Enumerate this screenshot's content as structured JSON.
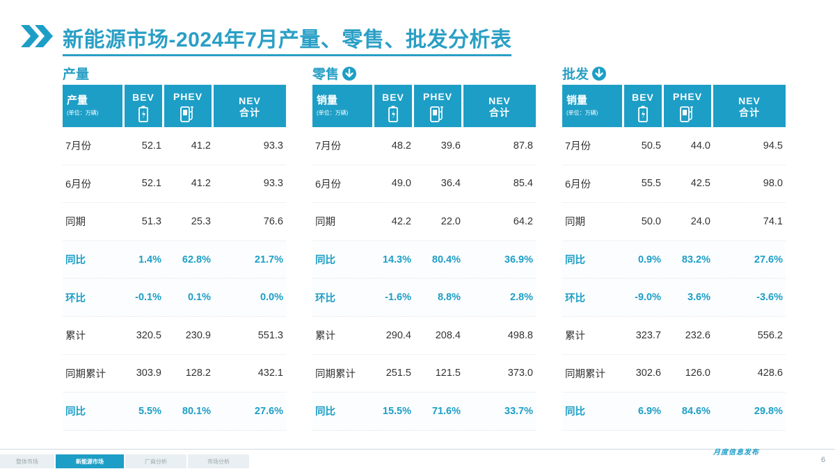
{
  "title": "新能源市场-2024年7月产量、零售、批发分析表",
  "colors": {
    "accent": "#1d9ec6",
    "title": "#2a9fc5",
    "row_highlight_text": "#1d9ec6"
  },
  "headers": {
    "bev": "BEV",
    "phev": "PHEV",
    "nev": "NEV",
    "nev_sub": "合计",
    "unit": "(单位：万辆)"
  },
  "tables": [
    {
      "section": "产量",
      "has_icon": false,
      "first_col": "产量",
      "rows": [
        {
          "label": "7月份",
          "bev": "52.1",
          "phev": "41.2",
          "nev": "93.3",
          "hl": false
        },
        {
          "label": "6月份",
          "bev": "52.1",
          "phev": "41.2",
          "nev": "93.3",
          "hl": false
        },
        {
          "label": "同期",
          "bev": "51.3",
          "phev": "25.3",
          "nev": "76.6",
          "hl": false
        },
        {
          "label": "同比",
          "bev": "1.4%",
          "phev": "62.8%",
          "nev": "21.7%",
          "hl": true
        },
        {
          "label": "环比",
          "bev": "-0.1%",
          "phev": "0.1%",
          "nev": "0.0%",
          "hl": true
        },
        {
          "label": "累计",
          "bev": "320.5",
          "phev": "230.9",
          "nev": "551.3",
          "hl": false
        },
        {
          "label": "同期累计",
          "bev": "303.9",
          "phev": "128.2",
          "nev": "432.1",
          "hl": false
        },
        {
          "label": "同比",
          "bev": "5.5%",
          "phev": "80.1%",
          "nev": "27.6%",
          "hl": true
        }
      ]
    },
    {
      "section": "零售",
      "has_icon": true,
      "first_col": "销量",
      "rows": [
        {
          "label": "7月份",
          "bev": "48.2",
          "phev": "39.6",
          "nev": "87.8",
          "hl": false
        },
        {
          "label": "6月份",
          "bev": "49.0",
          "phev": "36.4",
          "nev": "85.4",
          "hl": false
        },
        {
          "label": "同期",
          "bev": "42.2",
          "phev": "22.0",
          "nev": "64.2",
          "hl": false
        },
        {
          "label": "同比",
          "bev": "14.3%",
          "phev": "80.4%",
          "nev": "36.9%",
          "hl": true
        },
        {
          "label": "环比",
          "bev": "-1.6%",
          "phev": "8.8%",
          "nev": "2.8%",
          "hl": true
        },
        {
          "label": "累计",
          "bev": "290.4",
          "phev": "208.4",
          "nev": "498.8",
          "hl": false
        },
        {
          "label": "同期累计",
          "bev": "251.5",
          "phev": "121.5",
          "nev": "373.0",
          "hl": false
        },
        {
          "label": "同比",
          "bev": "15.5%",
          "phev": "71.6%",
          "nev": "33.7%",
          "hl": true
        }
      ]
    },
    {
      "section": "批发",
      "has_icon": true,
      "first_col": "销量",
      "rows": [
        {
          "label": "7月份",
          "bev": "50.5",
          "phev": "44.0",
          "nev": "94.5",
          "hl": false
        },
        {
          "label": "6月份",
          "bev": "55.5",
          "phev": "42.5",
          "nev": "98.0",
          "hl": false
        },
        {
          "label": "同期",
          "bev": "50.0",
          "phev": "24.0",
          "nev": "74.1",
          "hl": false
        },
        {
          "label": "同比",
          "bev": "0.9%",
          "phev": "83.2%",
          "nev": "27.6%",
          "hl": true
        },
        {
          "label": "环比",
          "bev": "-9.0%",
          "phev": "3.6%",
          "nev": "-3.6%",
          "hl": true
        },
        {
          "label": "累计",
          "bev": "323.7",
          "phev": "232.6",
          "nev": "556.2",
          "hl": false
        },
        {
          "label": "同期累计",
          "bev": "302.6",
          "phev": "126.0",
          "nev": "428.6",
          "hl": false
        },
        {
          "label": "同比",
          "bev": "6.9%",
          "phev": "84.6%",
          "nev": "29.8%",
          "hl": true
        }
      ]
    }
  ],
  "footer": {
    "tabs": [
      {
        "label": "整体市场",
        "active": false
      },
      {
        "label": "新能源市场",
        "active": true
      },
      {
        "label": "厂商分析",
        "active": false
      },
      {
        "label": "市场分析",
        "active": false
      }
    ],
    "right_text": "月度信息发布",
    "page_number": "6"
  }
}
